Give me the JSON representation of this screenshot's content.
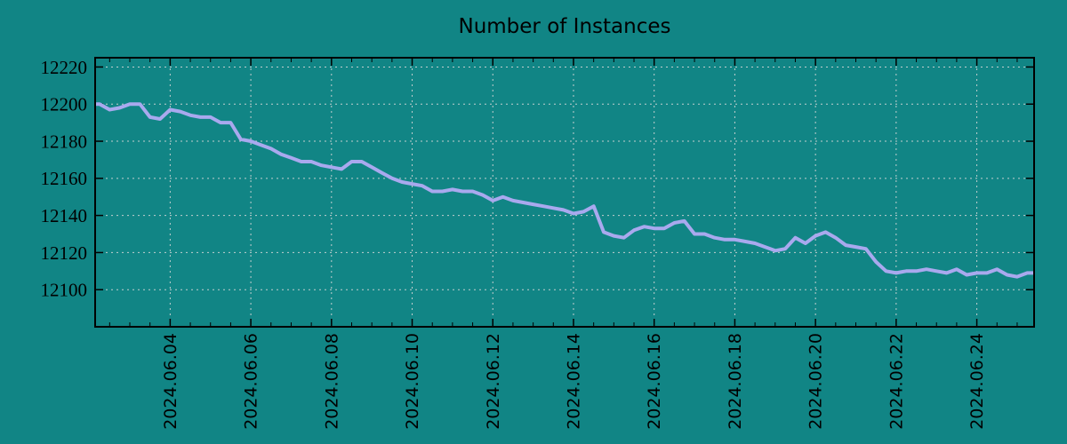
{
  "title": "Number of Instances",
  "colors": {
    "background": "#118585",
    "line": "#A9A9EE",
    "grid": "#C2CFCF",
    "axis": "#000000",
    "text": "#000000"
  },
  "chart_data": {
    "type": "line",
    "title": "Number of Instances",
    "xlabel": "",
    "ylabel": "",
    "legend": "none",
    "grid": "dashed-both-axes",
    "y_ticks": [
      12100,
      12120,
      12140,
      12160,
      12180,
      12200,
      12220
    ],
    "ylim": [
      12080,
      12225
    ],
    "x_tick_labels": [
      "2024.06.04",
      "2024.06.06",
      "2024.06.08",
      "2024.06.10",
      "2024.06.12",
      "2024.06.14",
      "2024.06.16",
      "2024.06.18",
      "2024.06.20",
      "2024.06.22",
      "2024.06.24"
    ],
    "x_tick_days_of_june": [
      4,
      6,
      8,
      10,
      12,
      14,
      16,
      18,
      20,
      22,
      24
    ],
    "x_minor_tick_step_days": 0.5,
    "xlim_days_of_june": [
      2.14,
      25.42
    ],
    "series": [
      {
        "name": "instances",
        "x_start": "2024-06-02 00:00",
        "x_step_hours": 6,
        "values": [
          12200,
          12200,
          12197,
          12198,
          12200,
          12200,
          12193,
          12192,
          12197,
          12196,
          12194,
          12193,
          12193,
          12190,
          12190,
          12181,
          12180,
          12178,
          12176,
          12173,
          12171,
          12169,
          12169,
          12167,
          12166,
          12165,
          12169,
          12169,
          12166,
          12163,
          12160,
          12158,
          12157,
          12156,
          12153,
          12153,
          12154,
          12153,
          12153,
          12151,
          12148,
          12150,
          12148,
          12147,
          12146,
          12145,
          12144,
          12143,
          12141,
          12142,
          12145,
          12131,
          12129,
          12128,
          12132,
          12134,
          12133,
          12133,
          12136,
          12137,
          12130,
          12130,
          12128,
          12127,
          12127,
          12126,
          12125,
          12123,
          12121,
          12122,
          12128,
          12125,
          12129,
          12131,
          12128,
          12124,
          12123,
          12122,
          12115,
          12110,
          12109,
          12110,
          12110,
          12111,
          12110,
          12109,
          12111,
          12108,
          12109,
          12109,
          12111,
          12108,
          12107,
          12109,
          12109
        ]
      }
    ]
  }
}
